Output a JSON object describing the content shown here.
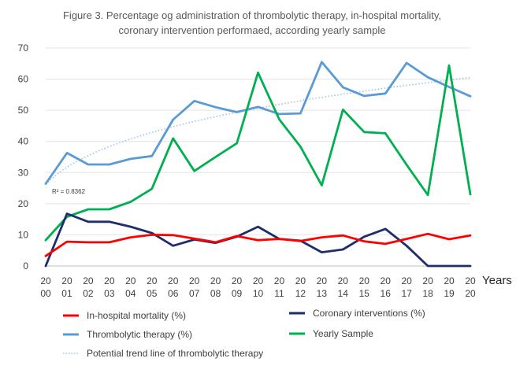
{
  "chart_data": {
    "type": "line",
    "title": [
      "Figure 3. Percentage og administration of thrombolytic therapy, in-hospital mortality,",
      "coronary intervention performaed, according yearly sample"
    ],
    "xlabel": "Years",
    "ylabel": "",
    "ylim": [
      0,
      70
    ],
    "yticks": [
      0,
      10,
      20,
      30,
      40,
      50,
      60,
      70
    ],
    "grid": true,
    "legend_position": "bottom",
    "categories": [
      [
        "20",
        "00"
      ],
      [
        "20",
        "01"
      ],
      [
        "20",
        "02"
      ],
      [
        "20",
        "03"
      ],
      [
        "20",
        "04"
      ],
      [
        "20",
        "05"
      ],
      [
        "20",
        "06"
      ],
      [
        "20",
        "07"
      ],
      [
        "20",
        "08"
      ],
      [
        "20",
        "09"
      ],
      [
        "20",
        "10"
      ],
      [
        "20",
        "11"
      ],
      [
        "20",
        "12"
      ],
      [
        "20",
        "13"
      ],
      [
        "20",
        "14"
      ],
      [
        "20",
        "15"
      ],
      [
        "20",
        "16"
      ],
      [
        "20",
        "17"
      ],
      [
        "20",
        "18"
      ],
      [
        "20",
        "19"
      ],
      [
        "20",
        "20"
      ]
    ],
    "series": [
      {
        "name": "In-hospital mortality (%)",
        "color": "#ff0000",
        "values": [
          3.2,
          7.8,
          7.6,
          7.6,
          9.2,
          10.0,
          9.9,
          8.8,
          7.6,
          9.6,
          8.3,
          8.7,
          8.0,
          9.2,
          9.8,
          7.9,
          7.1,
          8.7,
          10.3,
          8.6,
          9.8
        ]
      },
      {
        "name": "Coronary interventions (%)",
        "color": "#1f2d6b",
        "values": [
          0.0,
          16.8,
          14.2,
          14.2,
          12.6,
          10.6,
          6.5,
          8.5,
          7.4,
          9.4,
          12.6,
          8.7,
          8.1,
          4.4,
          5.3,
          9.4,
          11.9,
          6.5,
          0.0,
          0.0,
          0.0
        ]
      },
      {
        "name": "Thrombolytic therapy (%)",
        "color": "#5b9bd5",
        "values": [
          26.4,
          36.3,
          32.6,
          32.6,
          34.4,
          35.3,
          47.0,
          53.0,
          51.0,
          49.4,
          51.1,
          48.8,
          49.0,
          65.5,
          57.4,
          54.6,
          55.4,
          65.2,
          60.6,
          57.5,
          54.5
        ]
      },
      {
        "name": "Yearly Sample",
        "color": "#00b050",
        "values": [
          8.3,
          15.8,
          18.2,
          18.2,
          20.6,
          24.8,
          41.0,
          30.5,
          35.0,
          39.4,
          62.1,
          47.1,
          38.3,
          25.9,
          50.2,
          43.0,
          42.6,
          32.5,
          22.8,
          64.4,
          23.0
        ]
      }
    ],
    "trendline": {
      "name": "Potential trend line of thrombolytic therapy",
      "type": "power",
      "coef_a": 26.2,
      "exponent": 0.275,
      "color": "#9dc3e6",
      "r2_label": "R² = 0.8362"
    }
  }
}
